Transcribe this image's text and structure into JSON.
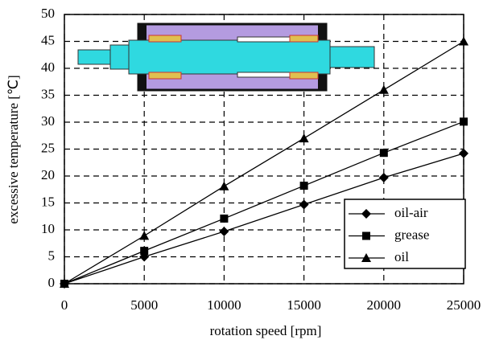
{
  "chart_data": {
    "type": "line",
    "x_label": "rotation speed [rpm]",
    "y_label": "excessive temperature [℃]",
    "x": [
      0,
      5000,
      10000,
      15000,
      20000,
      25000
    ],
    "series": [
      {
        "name": "oil-air",
        "color": "#000000",
        "marker": "diamond",
        "values": [
          0,
          5,
          9.7,
          14.7,
          19.7,
          24.2
        ]
      },
      {
        "name": "grease",
        "color": "#000000",
        "marker": "square",
        "values": [
          0,
          6.1,
          12.1,
          18.2,
          24.3,
          30.1
        ]
      },
      {
        "name": "oil",
        "color": "#000000",
        "marker": "triangle",
        "values": [
          0,
          8.9,
          18.1,
          27,
          36,
          45
        ]
      }
    ],
    "xlim": [
      0,
      25000
    ],
    "xticks": [
      0,
      5000,
      10000,
      15000,
      20000,
      25000
    ],
    "ylim": [
      0,
      50
    ],
    "yticks": [
      0,
      5,
      10,
      15,
      20,
      25,
      30,
      35,
      40,
      45,
      50
    ],
    "grid": true,
    "legend": "lower right"
  }
}
